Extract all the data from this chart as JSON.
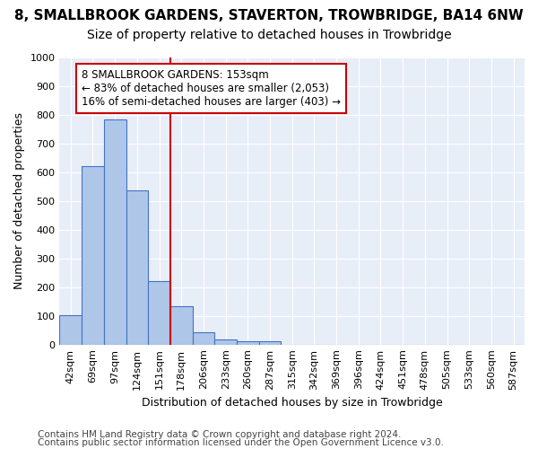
{
  "title": "8, SMALLBROOK GARDENS, STAVERTON, TROWBRIDGE, BA14 6NW",
  "subtitle": "Size of property relative to detached houses in Trowbridge",
  "xlabel": "Distribution of detached houses by size in Trowbridge",
  "ylabel": "Number of detached properties",
  "bin_labels": [
    "42sqm",
    "69sqm",
    "97sqm",
    "124sqm",
    "151sqm",
    "178sqm",
    "206sqm",
    "233sqm",
    "260sqm",
    "287sqm",
    "315sqm",
    "342sqm",
    "369sqm",
    "396sqm",
    "424sqm",
    "451sqm",
    "478sqm",
    "505sqm",
    "533sqm",
    "560sqm",
    "587sqm"
  ],
  "bin_values": [
    103,
    622,
    785,
    538,
    220,
    133,
    43,
    18,
    12,
    10,
    0,
    0,
    0,
    0,
    0,
    0,
    0,
    0,
    0,
    0,
    0
  ],
  "bar_color": "#aec6e8",
  "bar_edge_color": "#4472c4",
  "vline_x": 4.5,
  "vline_color": "#cc0000",
  "annotation_text": "8 SMALLBROOK GARDENS: 153sqm\n← 83% of detached houses are smaller (2,053)\n16% of semi-detached houses are larger (403) →",
  "annotation_box_color": "#ffffff",
  "annotation_box_edge": "#cc0000",
  "ylim": [
    0,
    1000
  ],
  "yticks": [
    0,
    100,
    200,
    300,
    400,
    500,
    600,
    700,
    800,
    900,
    1000
  ],
  "background_color": "#e8eef8",
  "footer_line1": "Contains HM Land Registry data © Crown copyright and database right 2024.",
  "footer_line2": "Contains public sector information licensed under the Open Government Licence v3.0.",
  "title_fontsize": 11,
  "subtitle_fontsize": 10,
  "xlabel_fontsize": 9,
  "ylabel_fontsize": 9,
  "tick_fontsize": 8,
  "annotation_fontsize": 8.5,
  "footer_fontsize": 7.5
}
